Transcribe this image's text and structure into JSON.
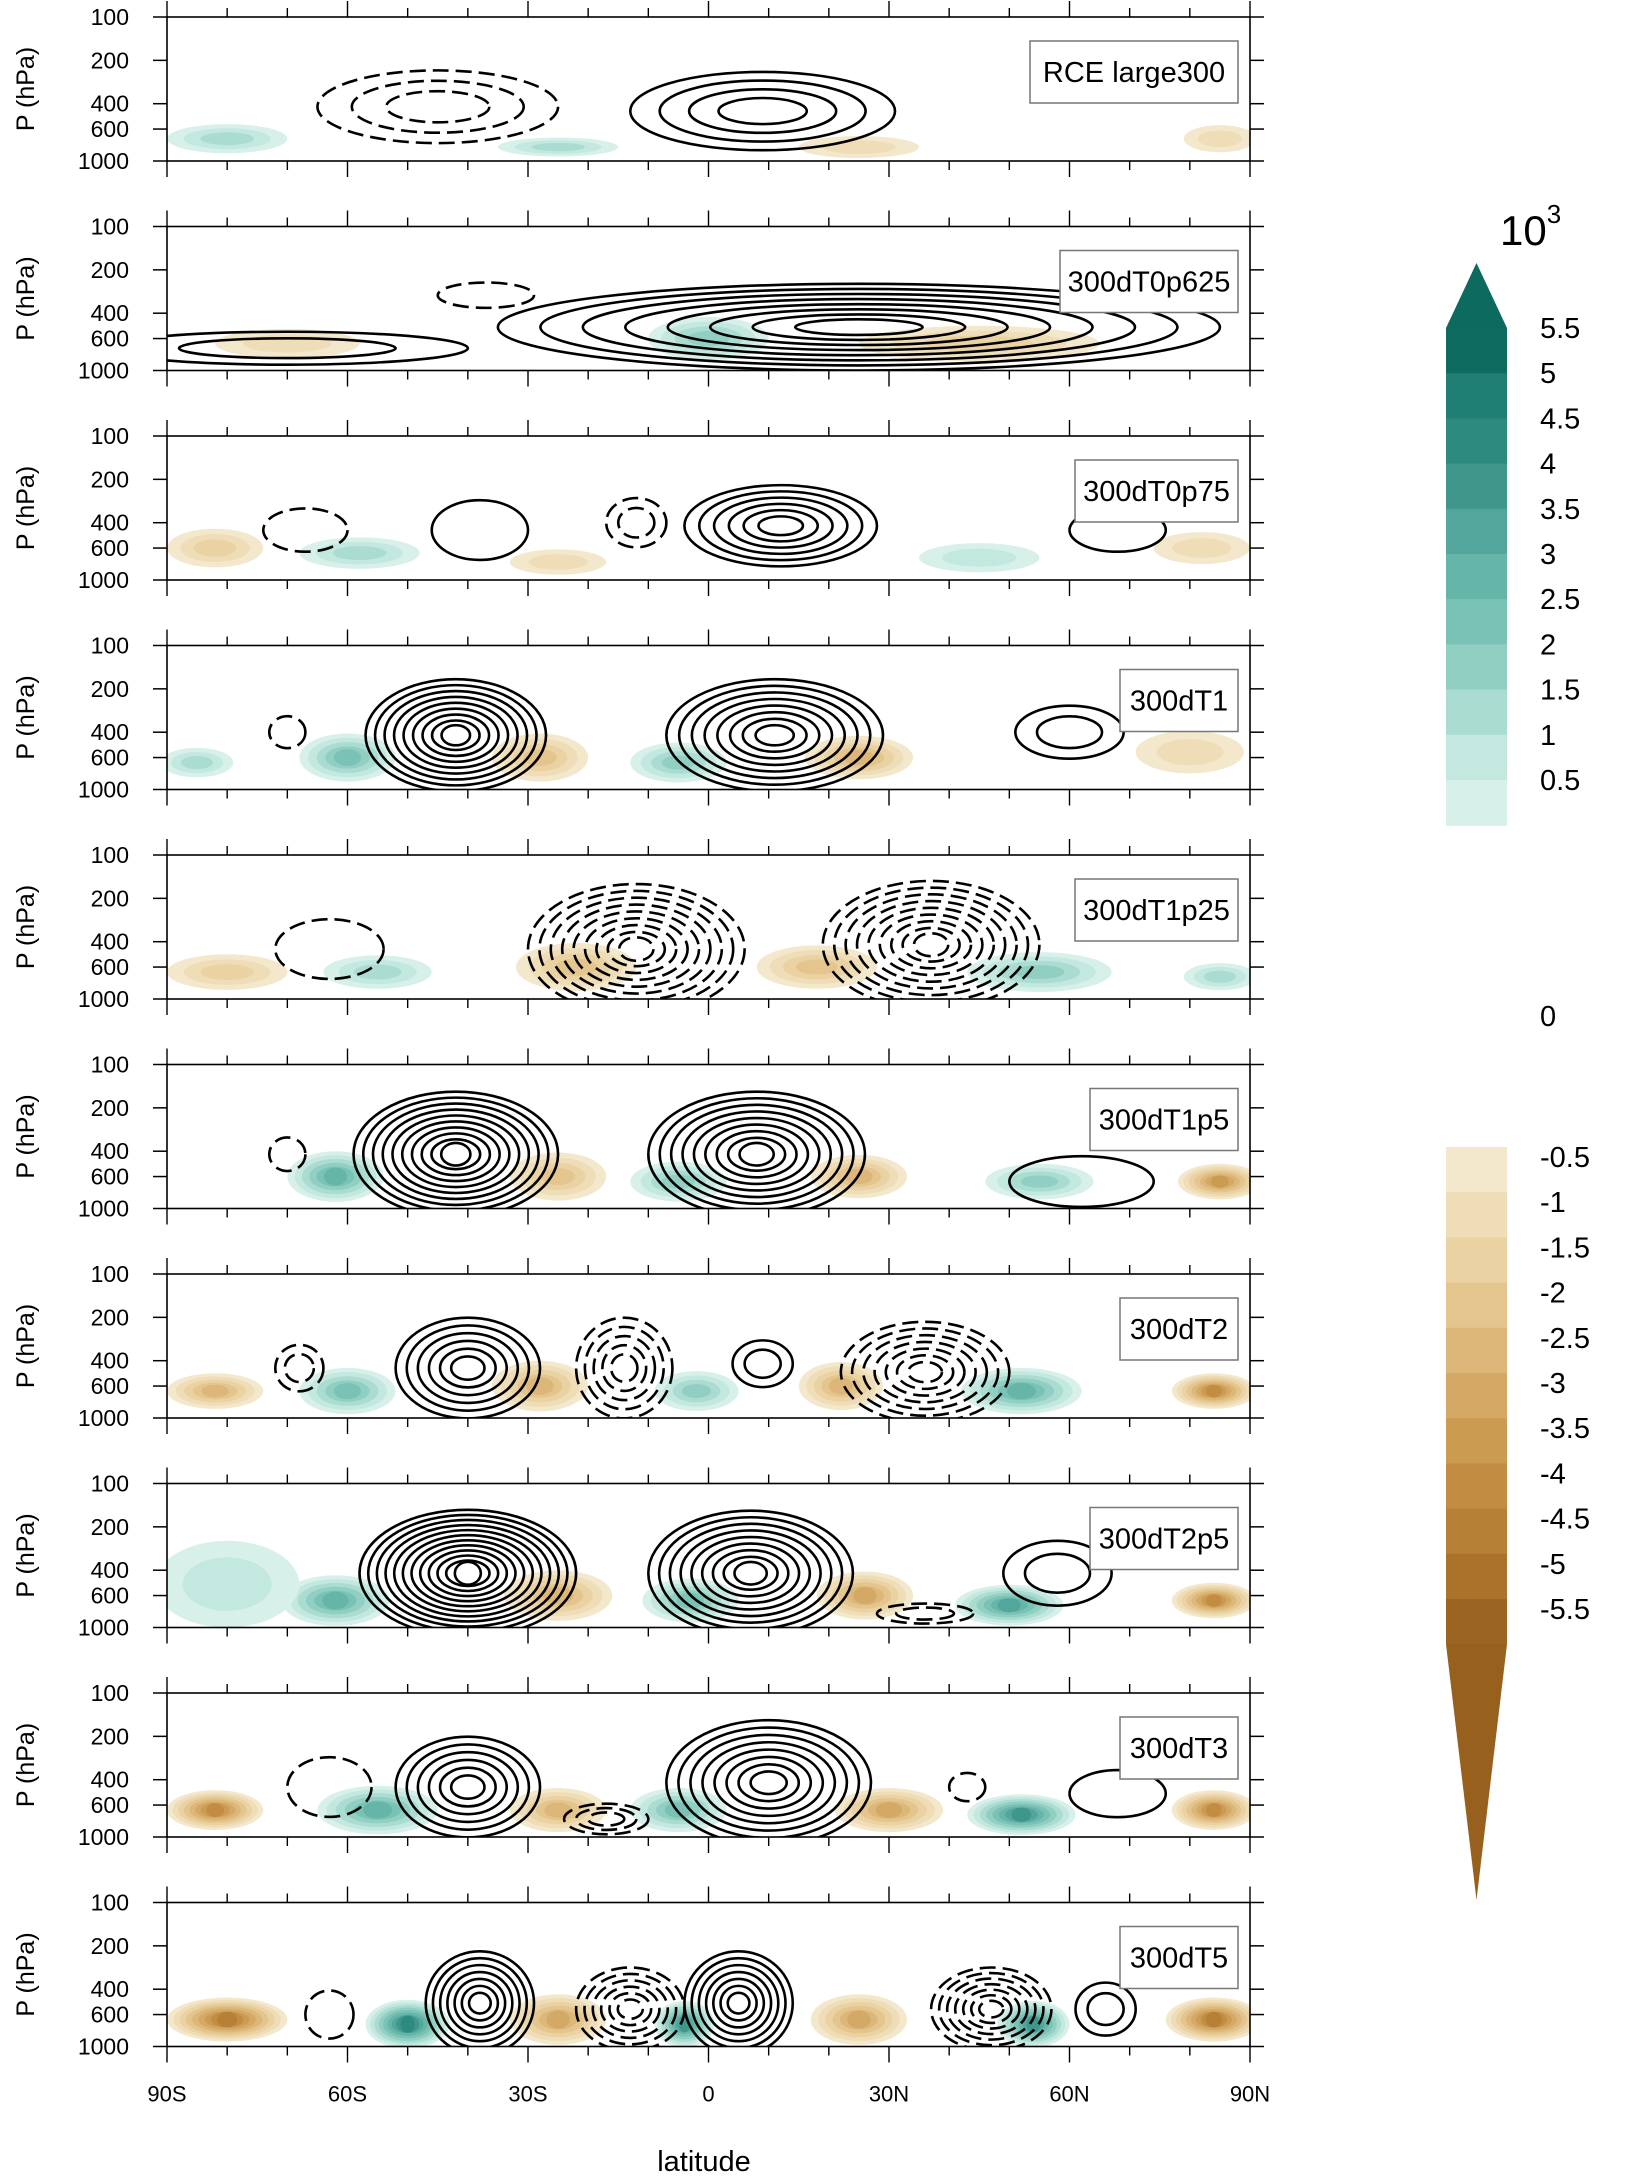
{
  "chart_data": {
    "type": "contour",
    "xlabel": "latitude",
    "ylabel": "P (hPa)",
    "x_ticks": [
      -90,
      -60,
      -30,
      0,
      30,
      60,
      90
    ],
    "x_tick_labels": [
      "90S",
      "60S",
      "30S",
      "0",
      "30N",
      "60N",
      "90N"
    ],
    "xlim": [
      -90,
      90
    ],
    "y_ticks": [
      100,
      200,
      400,
      600,
      1000
    ],
    "y_tick_labels": [
      "100",
      "200",
      "400",
      "600",
      "1000"
    ],
    "ylim": [
      1000,
      100
    ],
    "y_scale": "log",
    "panels": [
      {
        "label": "RCE large300",
        "contours": [
          {
            "lat": 9,
            "p": 450,
            "w": 22,
            "h": 250,
            "n": 4,
            "sign": 1
          },
          {
            "lat": -45,
            "p": 420,
            "w": 20,
            "h": 220,
            "n": 3,
            "sign": -1
          }
        ],
        "shading": [
          {
            "lat": -80,
            "p": 700,
            "w": 10,
            "h": 160,
            "v": 1.5
          },
          {
            "lat": -25,
            "p": 800,
            "w": 10,
            "h": 120,
            "v": 1.5
          },
          {
            "lat": 25,
            "p": 800,
            "w": 10,
            "h": 140,
            "v": -1
          },
          {
            "lat": 85,
            "p": 700,
            "w": 6,
            "h": 150,
            "v": -1
          }
        ]
      },
      {
        "label": "300dT0p625",
        "contours": [
          {
            "lat": 25,
            "p": 500,
            "w": 60,
            "h": 300,
            "n": 8,
            "sign": 1
          },
          {
            "lat": -70,
            "p": 700,
            "w": 30,
            "h": 180,
            "n": 2,
            "sign": 1
          },
          {
            "lat": -37,
            "p": 300,
            "w": 8,
            "h": 60,
            "n": 1,
            "sign": -1
          }
        ],
        "shading": [
          {
            "lat": 0,
            "p": 600,
            "w": 10,
            "h": 200,
            "v": 2
          },
          {
            "lat": 45,
            "p": 650,
            "w": 20,
            "h": 180,
            "v": -1.5
          },
          {
            "lat": -70,
            "p": 650,
            "w": 12,
            "h": 150,
            "v": -1
          }
        ]
      },
      {
        "label": "300dT0p75",
        "contours": [
          {
            "lat": 12,
            "p": 420,
            "w": 16,
            "h": 240,
            "n": 6,
            "sign": 1
          },
          {
            "lat": -38,
            "p": 450,
            "w": 8,
            "h": 200,
            "n": 1,
            "sign": 1
          },
          {
            "lat": -67,
            "p": 450,
            "w": 7,
            "h": 150,
            "n": 1,
            "sign": -1
          },
          {
            "lat": -12,
            "p": 400,
            "w": 5,
            "h": 150,
            "n": 2,
            "sign": -1
          },
          {
            "lat": 68,
            "p": 450,
            "w": 8,
            "h": 150,
            "n": 1,
            "sign": 1
          }
        ],
        "shading": [
          {
            "lat": -82,
            "p": 600,
            "w": 8,
            "h": 180,
            "v": -1.5
          },
          {
            "lat": -58,
            "p": 650,
            "w": 10,
            "h": 160,
            "v": 1.5
          },
          {
            "lat": -25,
            "p": 750,
            "w": 8,
            "h": 150,
            "v": -1
          },
          {
            "lat": 45,
            "p": 700,
            "w": 10,
            "h": 160,
            "v": 1
          },
          {
            "lat": 82,
            "p": 600,
            "w": 8,
            "h": 150,
            "v": -1
          }
        ]
      },
      {
        "label": "300dT1",
        "contours": [
          {
            "lat": -42,
            "p": 420,
            "w": 15,
            "h": 300,
            "n": 9,
            "sign": 1
          },
          {
            "lat": 11,
            "p": 420,
            "w": 18,
            "h": 300,
            "n": 8,
            "sign": 1
          },
          {
            "lat": 60,
            "p": 400,
            "w": 9,
            "h": 160,
            "n": 2,
            "sign": 1
          },
          {
            "lat": -70,
            "p": 400,
            "w": 3,
            "h": 100,
            "n": 1,
            "sign": -1
          }
        ],
        "shading": [
          {
            "lat": -60,
            "p": 600,
            "w": 8,
            "h": 220,
            "v": 2.5
          },
          {
            "lat": -28,
            "p": 600,
            "w": 8,
            "h": 220,
            "v": -2
          },
          {
            "lat": -5,
            "p": 650,
            "w": 8,
            "h": 200,
            "v": 2
          },
          {
            "lat": 25,
            "p": 600,
            "w": 9,
            "h": 200,
            "v": -2.5
          },
          {
            "lat": -85,
            "p": 650,
            "w": 6,
            "h": 150,
            "v": 1.5
          },
          {
            "lat": 80,
            "p": 550,
            "w": 9,
            "h": 180,
            "v": -1
          }
        ]
      },
      {
        "label": "300dT1p25",
        "contours": [
          {
            "lat": -12,
            "p": 450,
            "w": 18,
            "h": 350,
            "n": 9,
            "sign": -1
          },
          {
            "lat": 37,
            "p": 420,
            "w": 18,
            "h": 350,
            "n": 9,
            "sign": -1
          },
          {
            "lat": -63,
            "p": 450,
            "w": 9,
            "h": 200,
            "n": 1,
            "sign": -1
          }
        ],
        "shading": [
          {
            "lat": -80,
            "p": 650,
            "w": 10,
            "h": 180,
            "v": -1.5
          },
          {
            "lat": -55,
            "p": 650,
            "w": 9,
            "h": 170,
            "v": 1.5
          },
          {
            "lat": -22,
            "p": 600,
            "w": 10,
            "h": 220,
            "v": -2
          },
          {
            "lat": 18,
            "p": 600,
            "w": 10,
            "h": 200,
            "v": -2
          },
          {
            "lat": 55,
            "p": 650,
            "w": 12,
            "h": 200,
            "v": 2
          },
          {
            "lat": 85,
            "p": 700,
            "w": 6,
            "h": 150,
            "v": 1.5
          }
        ]
      },
      {
        "label": "300dT1p5",
        "contours": [
          {
            "lat": -42,
            "p": 420,
            "w": 17,
            "h": 320,
            "n": 10,
            "sign": 1
          },
          {
            "lat": 8,
            "p": 420,
            "w": 18,
            "h": 320,
            "n": 9,
            "sign": 1
          },
          {
            "lat": 62,
            "p": 650,
            "w": 12,
            "h": 250,
            "n": 1,
            "sign": 1
          },
          {
            "lat": -70,
            "p": 420,
            "w": 3,
            "h": 110,
            "n": 1,
            "sign": -1
          }
        ],
        "shading": [
          {
            "lat": -62,
            "p": 600,
            "w": 8,
            "h": 230,
            "v": 3
          },
          {
            "lat": -25,
            "p": 600,
            "w": 8,
            "h": 220,
            "v": -2
          },
          {
            "lat": -5,
            "p": 650,
            "w": 8,
            "h": 200,
            "v": 2
          },
          {
            "lat": 25,
            "p": 600,
            "w": 8,
            "h": 200,
            "v": -2.5
          },
          {
            "lat": 55,
            "p": 650,
            "w": 9,
            "h": 180,
            "v": 2
          },
          {
            "lat": 85,
            "p": 650,
            "w": 7,
            "h": 180,
            "v": -3.5
          }
        ]
      },
      {
        "label": "300dT2",
        "contours": [
          {
            "lat": -40,
            "p": 450,
            "w": 12,
            "h": 300,
            "n": 6,
            "sign": 1
          },
          {
            "lat": -14,
            "p": 450,
            "w": 8,
            "h": 300,
            "n": 5,
            "sign": -1
          },
          {
            "lat": 36,
            "p": 480,
            "w": 14,
            "h": 320,
            "n": 7,
            "sign": -1
          },
          {
            "lat": 9,
            "p": 420,
            "w": 5,
            "h": 150,
            "n": 2,
            "sign": 1
          },
          {
            "lat": -68,
            "p": 450,
            "w": 4,
            "h": 160,
            "n": 2,
            "sign": -1
          }
        ],
        "shading": [
          {
            "lat": -60,
            "p": 650,
            "w": 8,
            "h": 230,
            "v": 2.5
          },
          {
            "lat": -28,
            "p": 600,
            "w": 8,
            "h": 230,
            "v": -2.5
          },
          {
            "lat": -2,
            "p": 650,
            "w": 7,
            "h": 200,
            "v": 2
          },
          {
            "lat": 22,
            "p": 600,
            "w": 7,
            "h": 220,
            "v": -2.5
          },
          {
            "lat": 52,
            "p": 650,
            "w": 10,
            "h": 230,
            "v": 3
          },
          {
            "lat": -82,
            "p": 650,
            "w": 8,
            "h": 180,
            "v": -2.5
          },
          {
            "lat": 84,
            "p": 650,
            "w": 7,
            "h": 180,
            "v": -4
          }
        ]
      },
      {
        "label": "300dT2p5",
        "contours": [
          {
            "lat": -40,
            "p": 420,
            "w": 18,
            "h": 340,
            "n": 12,
            "sign": 1
          },
          {
            "lat": 7,
            "p": 420,
            "w": 17,
            "h": 320,
            "n": 9,
            "sign": 1
          },
          {
            "lat": 58,
            "p": 420,
            "w": 9,
            "h": 200,
            "n": 2,
            "sign": 1
          },
          {
            "lat": 36,
            "p": 800,
            "w": 8,
            "h": 100,
            "n": 2,
            "sign": -1
          }
        ],
        "shading": [
          {
            "lat": -62,
            "p": 650,
            "w": 9,
            "h": 250,
            "v": 3
          },
          {
            "lat": -25,
            "p": 600,
            "w": 9,
            "h": 230,
            "v": -2.5
          },
          {
            "lat": -3,
            "p": 650,
            "w": 8,
            "h": 220,
            "v": 2.5
          },
          {
            "lat": 26,
            "p": 600,
            "w": 8,
            "h": 220,
            "v": -3
          },
          {
            "lat": 50,
            "p": 700,
            "w": 9,
            "h": 220,
            "v": 3.5
          },
          {
            "lat": -80,
            "p": 500,
            "w": 12,
            "h": 300,
            "v": 1
          },
          {
            "lat": 84,
            "p": 650,
            "w": 7,
            "h": 180,
            "v": -4
          }
        ]
      },
      {
        "label": "300dT3",
        "contours": [
          {
            "lat": -40,
            "p": 450,
            "w": 12,
            "h": 300,
            "n": 6,
            "sign": 1
          },
          {
            "lat": 10,
            "p": 420,
            "w": 17,
            "h": 320,
            "n": 8,
            "sign": 1
          },
          {
            "lat": -63,
            "p": 450,
            "w": 7,
            "h": 200,
            "n": 1,
            "sign": -1
          },
          {
            "lat": -17,
            "p": 750,
            "w": 7,
            "h": 180,
            "n": 3,
            "sign": -1
          },
          {
            "lat": 43,
            "p": 450,
            "w": 3,
            "h": 100,
            "n": 1,
            "sign": -1
          },
          {
            "lat": 68,
            "p": 500,
            "w": 8,
            "h": 180,
            "n": 1,
            "sign": 1
          }
        ],
        "shading": [
          {
            "lat": -55,
            "p": 650,
            "w": 10,
            "h": 240,
            "v": 3
          },
          {
            "lat": -25,
            "p": 650,
            "w": 8,
            "h": 220,
            "v": -2.5
          },
          {
            "lat": -5,
            "p": 650,
            "w": 8,
            "h": 220,
            "v": 2.5
          },
          {
            "lat": 30,
            "p": 650,
            "w": 9,
            "h": 220,
            "v": -3
          },
          {
            "lat": 52,
            "p": 700,
            "w": 9,
            "h": 220,
            "v": 4
          },
          {
            "lat": -82,
            "p": 650,
            "w": 8,
            "h": 200,
            "v": -4
          },
          {
            "lat": 84,
            "p": 650,
            "w": 7,
            "h": 200,
            "v": -4
          }
        ]
      },
      {
        "label": "300dT5",
        "contours": [
          {
            "lat": -38,
            "p": 500,
            "w": 9,
            "h": 340,
            "n": 7,
            "sign": 1
          },
          {
            "lat": 5,
            "p": 500,
            "w": 9,
            "h": 340,
            "n": 7,
            "sign": 1
          },
          {
            "lat": -13,
            "p": 550,
            "w": 9,
            "h": 320,
            "n": 6,
            "sign": -1
          },
          {
            "lat": 47,
            "p": 550,
            "w": 10,
            "h": 320,
            "n": 7,
            "sign": -1
          },
          {
            "lat": 66,
            "p": 550,
            "w": 5,
            "h": 220,
            "n": 2,
            "sign": 1
          },
          {
            "lat": -63,
            "p": 600,
            "w": 4,
            "h": 220,
            "n": 1,
            "sign": -1
          }
        ],
        "shading": [
          {
            "lat": -50,
            "p": 700,
            "w": 7,
            "h": 260,
            "v": 4.5
          },
          {
            "lat": -4,
            "p": 700,
            "w": 5,
            "h": 250,
            "v": 4
          },
          {
            "lat": 54,
            "p": 700,
            "w": 6,
            "h": 250,
            "v": 4
          },
          {
            "lat": -25,
            "p": 650,
            "w": 8,
            "h": 250,
            "v": -3
          },
          {
            "lat": 25,
            "p": 650,
            "w": 8,
            "h": 250,
            "v": -3
          },
          {
            "lat": -80,
            "p": 650,
            "w": 10,
            "h": 220,
            "v": -4.5
          },
          {
            "lat": 84,
            "p": 650,
            "w": 8,
            "h": 220,
            "v": -4.5
          }
        ]
      }
    ],
    "colorbar": {
      "multiplier_label": "10",
      "multiplier_exponent": "3",
      "tick_labels": [
        "5.5",
        "5",
        "4.5",
        "4",
        "3.5",
        "3",
        "2.5",
        "2",
        "1.5",
        "1",
        "0.5",
        "0",
        "-0.5",
        "-1",
        "-1.5",
        "-2",
        "-2.5",
        "-3",
        "-3.5",
        "-4",
        "-4.5",
        "-5",
        "-5.5"
      ],
      "positive_colors": [
        "#0e6b60",
        "#1f7f74",
        "#2d8a7f",
        "#3f978c",
        "#52a69b",
        "#66b5a9",
        "#7ac2b6",
        "#92cfc3",
        "#abdcd1",
        "#c3e8df",
        "#d7f0ea"
      ],
      "negative_colors": [
        "#f4e8cc",
        "#efddb7",
        "#ead2a3",
        "#e4c58d",
        "#dcb779",
        "#d3a965",
        "#cc9b52",
        "#c28d43",
        "#b78037",
        "#ab722c",
        "#9c6421"
      ],
      "positive_triangle_color": "#0c6a5e",
      "negative_triangle_color": "#98601d"
    }
  }
}
